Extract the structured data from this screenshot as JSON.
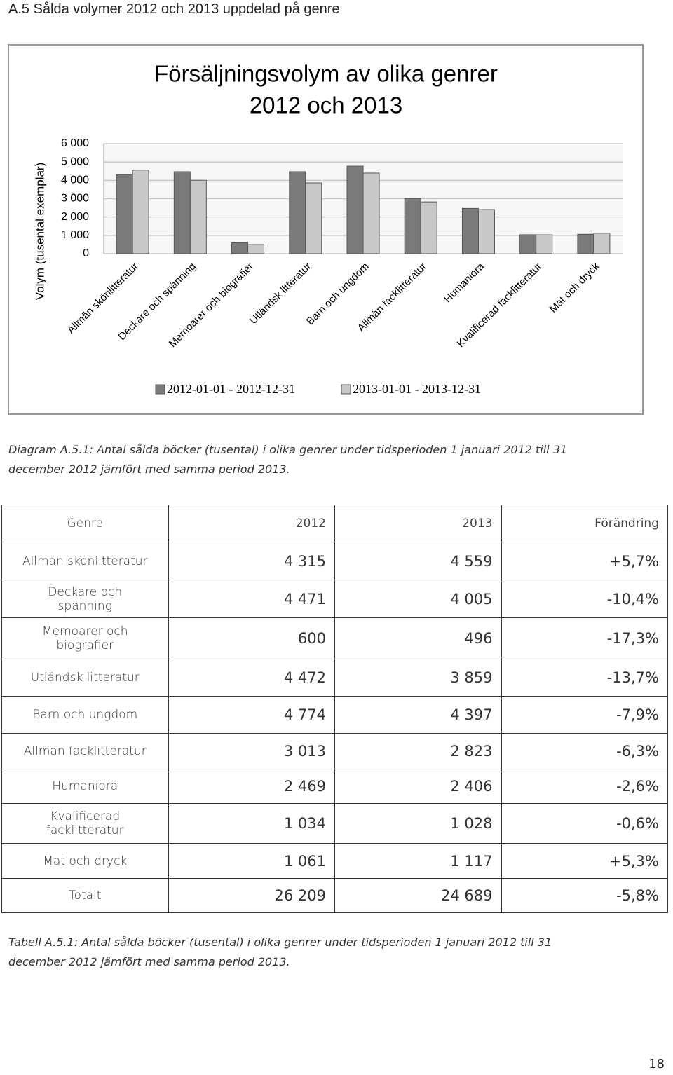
{
  "heading": "A.5 Sålda volymer 2012 och 2013 uppdelad på genre",
  "chart_data": {
    "type": "bar",
    "title": [
      "Försäljningsvolym av olika genrer",
      "2012 och 2013"
    ],
    "y_label": "Volym (tusental exemplar)",
    "categories": [
      "Allmän skönlitteratur",
      "Deckare och spänning",
      "Memoarer och biografier",
      "Utländsk litteratur",
      "Barn och ungdom",
      "Allmän facklitteratur",
      "Humaniora",
      "Kvalificerad facklitteratur",
      "Mat och dryck"
    ],
    "series": [
      {
        "name": "2012-01-01 - 2012-12-31",
        "color": "#7a7a7a",
        "values": [
          4315,
          4471,
          600,
          4472,
          4774,
          3013,
          2469,
          1034,
          1061
        ]
      },
      {
        "name": "2013-01-01 - 2013-12-31",
        "color": "#c8c8c8",
        "values": [
          4559,
          4005,
          496,
          3859,
          4397,
          2823,
          2406,
          1028,
          1117
        ]
      }
    ],
    "ylim": [
      0,
      6000
    ],
    "yticks": [
      0,
      {
        "value": 1000,
        "label": "1 000"
      },
      {
        "value": 2000,
        "label": "2 000"
      },
      {
        "value": 3000,
        "label": "3 000"
      },
      {
        "value": 4000,
        "label": "4 000"
      },
      {
        "value": 5000,
        "label": "5 000"
      },
      {
        "value": 6000,
        "label": "6 000"
      }
    ],
    "grid": true,
    "legend": "bottom"
  },
  "chart_caption": [
    "Diagram A.5.1: Antal sålda böcker (tusental) i olika genrer under tidsperioden 1 januari 2012 till 31",
    "december 2012 jämfört med samma period 2013."
  ],
  "table": {
    "header": [
      "Genre",
      "2012",
      "2013",
      "Förändring"
    ],
    "rows": [
      [
        "Allmän skönlitteratur",
        "4 315",
        "4 559",
        "+5,7%"
      ],
      [
        "Deckare och spänning",
        "4 471",
        "4 005",
        "-10,4%"
      ],
      [
        "Memoarer och biografier",
        "600",
        "496",
        "-17,3%"
      ],
      [
        "Utländsk litteratur",
        "4 472",
        "3 859",
        "-13,7%"
      ],
      [
        "Barn och ungdom",
        "4 774",
        "4 397",
        "-7,9%"
      ],
      [
        "Allmän facklitteratur",
        "3 013",
        "2 823",
        "-6,3%"
      ],
      [
        "Humaniora",
        "2 469",
        "2 406",
        "-2,6%"
      ],
      [
        "Kvalificerad facklitteratur",
        "1 034",
        "1 028",
        "-0,6%"
      ],
      [
        "Mat och dryck",
        "1 061",
        "1 117",
        "+5,3%"
      ],
      [
        "Totalt",
        "26 209",
        "24 689",
        "-5,8%"
      ]
    ]
  },
  "table_caption": [
    "Tabell A.5.1: Antal sålda böcker (tusental) i olika genrer under tidsperioden 1 januari 2012 till 31",
    "december 2012 jämfört med samma period 2013."
  ],
  "page_number": "18"
}
